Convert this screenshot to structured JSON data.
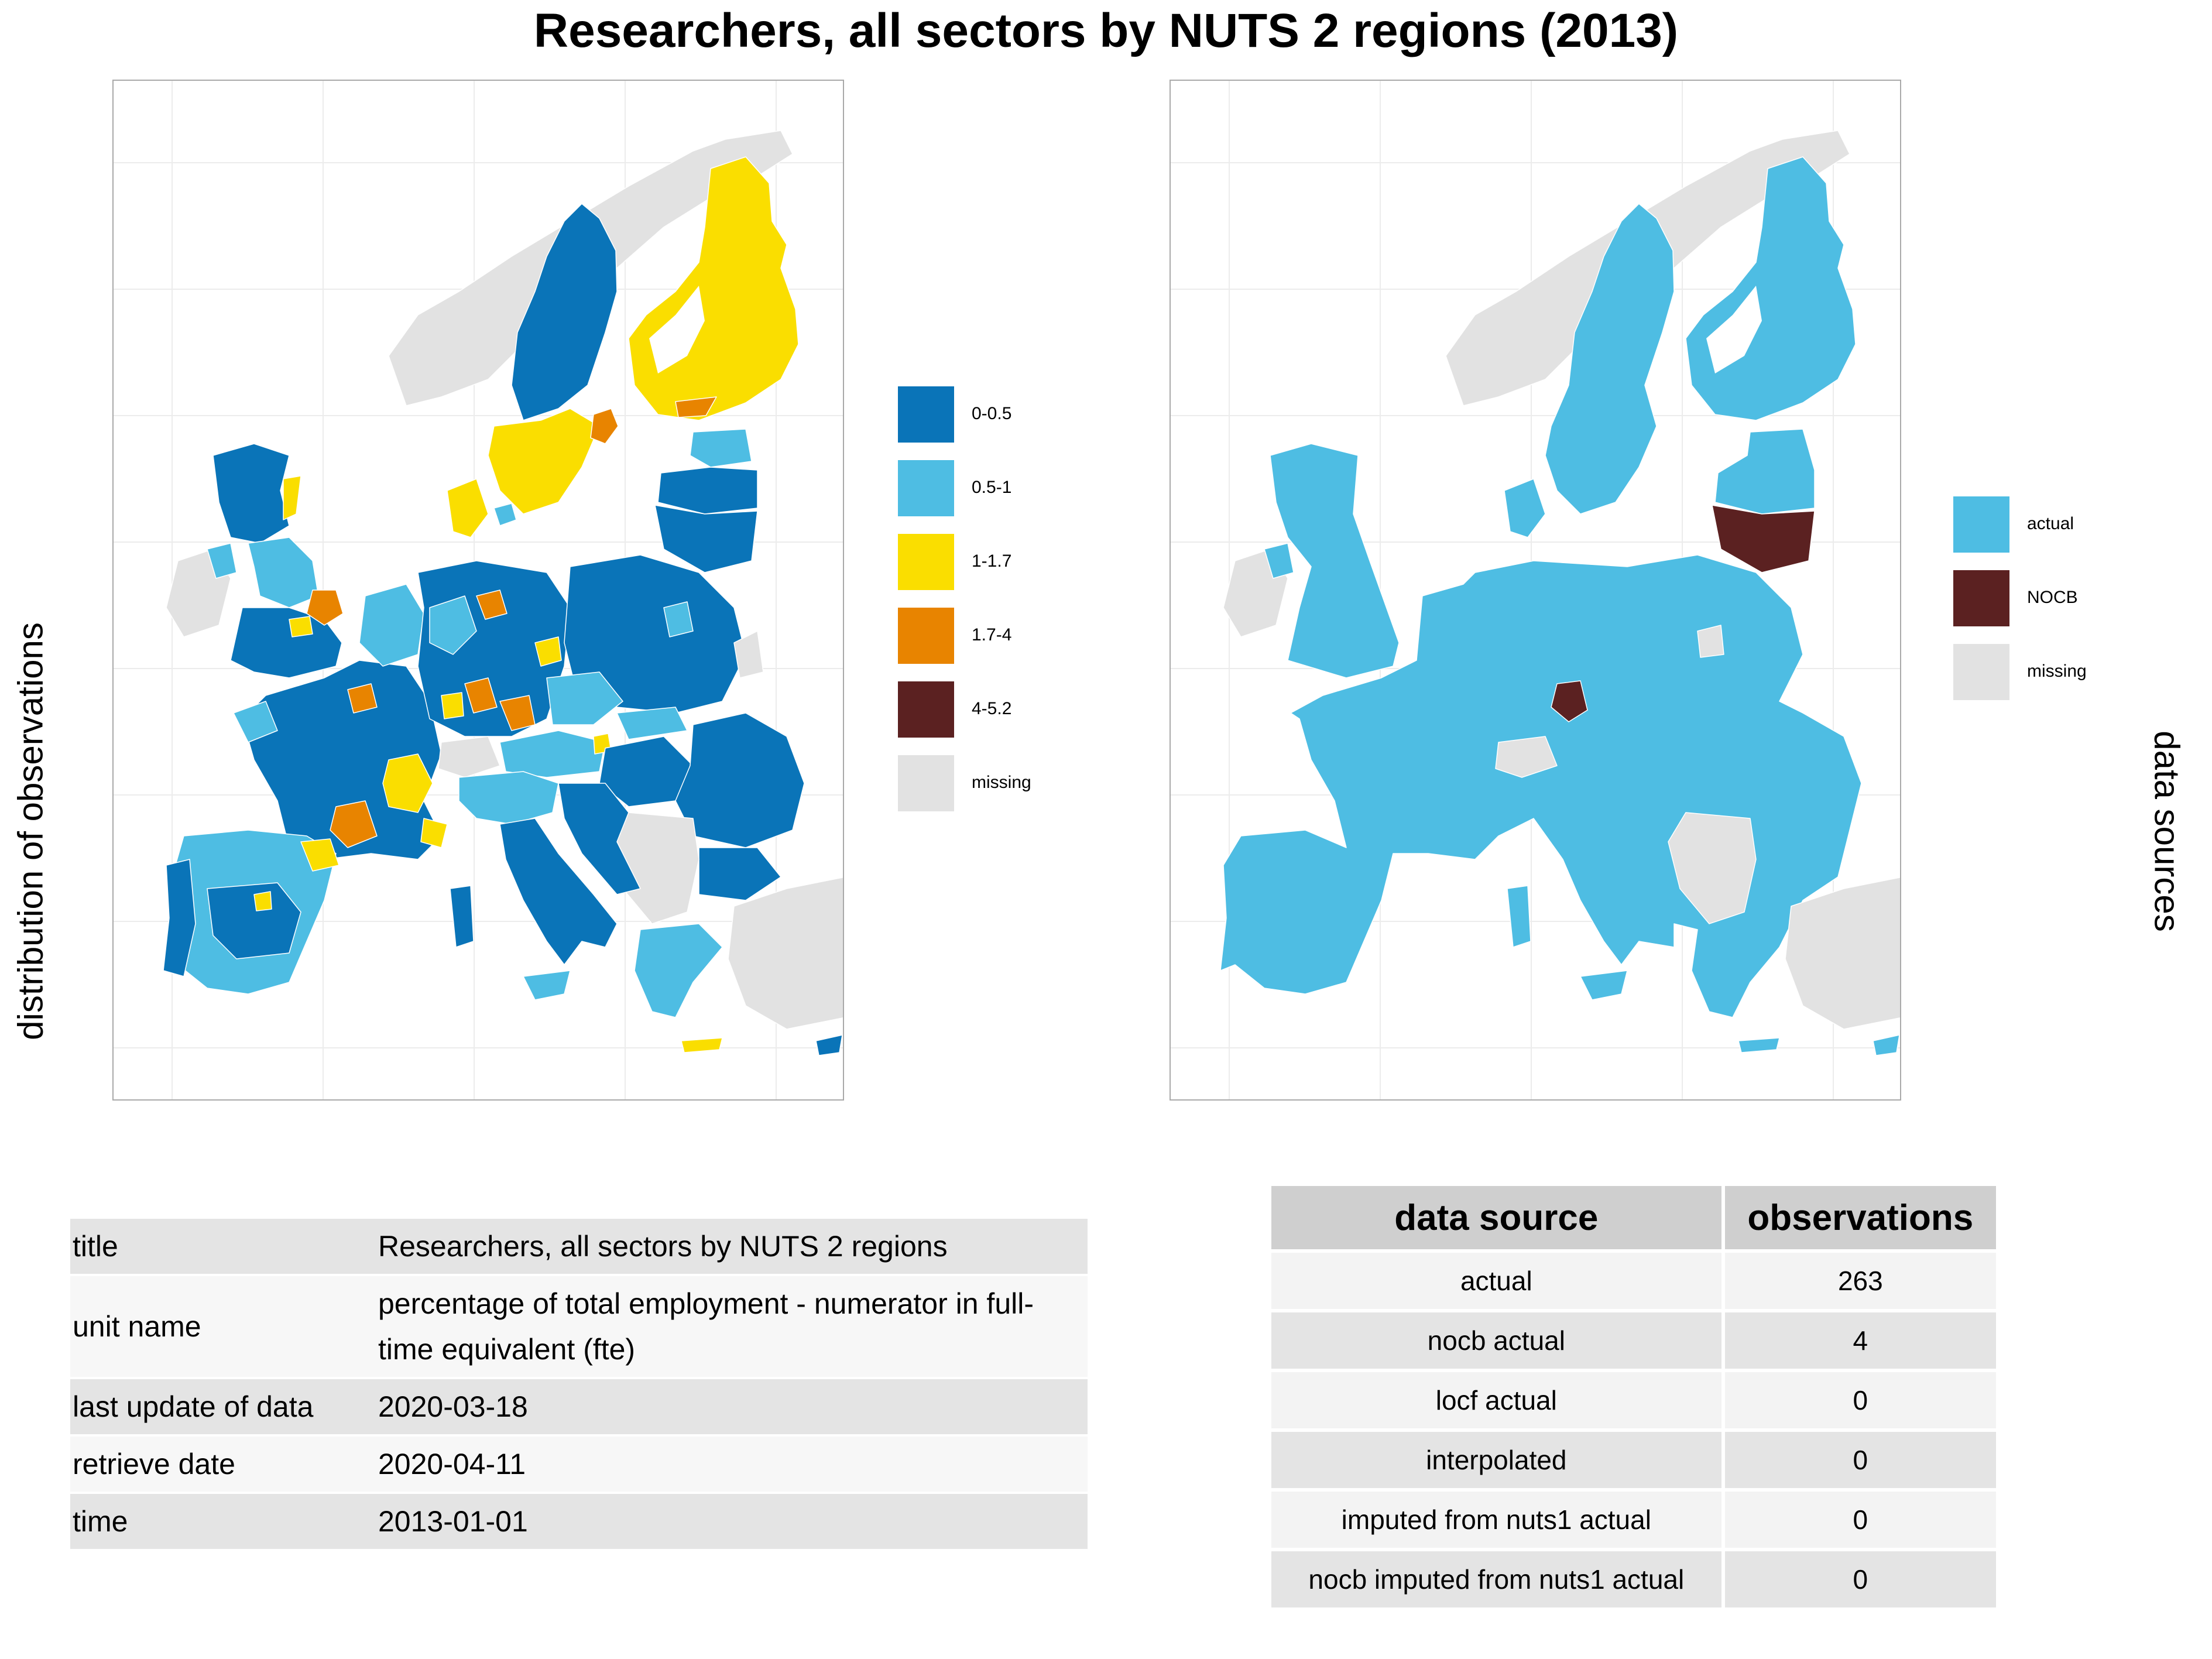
{
  "title": "Researchers, all sectors by NUTS 2 regions (2013)",
  "left_panel": {
    "side_label": "distribution of observations",
    "legend": [
      {
        "label": "0-0.5",
        "color": "#0a74b8"
      },
      {
        "label": "0.5-1",
        "color": "#4ebde3"
      },
      {
        "label": "1-1.7",
        "color": "#fade00"
      },
      {
        "label": "1.7-4",
        "color": "#e88400"
      },
      {
        "label": "4-5.2",
        "color": "#5b2121"
      },
      {
        "label": "missing",
        "color": "#e2e2e2"
      }
    ]
  },
  "right_panel": {
    "side_label": "data sources",
    "legend": [
      {
        "label": "actual",
        "color": "#4ebde3"
      },
      {
        "label": "NOCB",
        "color": "#5b2121"
      },
      {
        "label": "missing",
        "color": "#e2e2e2"
      }
    ]
  },
  "metadata_table": [
    {
      "key": "title",
      "value": "Researchers, all sectors by NUTS 2 regions"
    },
    {
      "key": "unit name",
      "value": "percentage of total employment - numerator in full-time equivalent (fte)"
    },
    {
      "key": "last update of data",
      "value": "2020-03-18"
    },
    {
      "key": "retrieve date",
      "value": "2020-04-11"
    },
    {
      "key": "time",
      "value": "2013-01-01"
    }
  ],
  "source_table": {
    "headers": [
      "data source",
      "observations"
    ],
    "rows": [
      {
        "source": "actual",
        "observations": "263"
      },
      {
        "source": "nocb actual",
        "observations": "4"
      },
      {
        "source": "locf actual",
        "observations": "0"
      },
      {
        "source": "interpolated",
        "observations": "0"
      },
      {
        "source": "imputed from nuts1 actual",
        "observations": "0"
      },
      {
        "source": "nocb imputed from nuts1 actual",
        "observations": "0"
      }
    ]
  }
}
